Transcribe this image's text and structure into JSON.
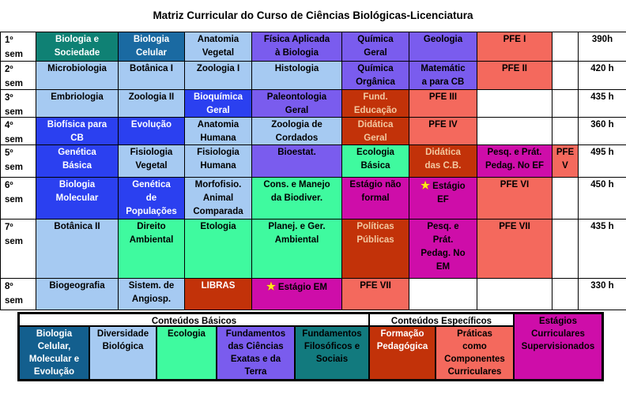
{
  "title": "Matriz Curricular do Curso de Ciências Biológicas-Licenciatura",
  "colors": {
    "teal": {
      "bg": "#0F8174",
      "fg": "#FFFFFF"
    },
    "teal2": {
      "bg": "#127A7E",
      "fg": "#000000"
    },
    "steelblue": {
      "bg": "#1A6AA2",
      "fg": "#FFFFFF"
    },
    "legendblue": {
      "bg": "#135F8E",
      "fg": "#FFFFFF"
    },
    "lightblue": {
      "bg": "#A6CAF2",
      "fg": "#000000"
    },
    "royalblue": {
      "bg": "#2B40F0",
      "fg": "#FFFFFF"
    },
    "purple": {
      "bg": "#7A5CEE",
      "fg": "#000000"
    },
    "green": {
      "bg": "#3FFA9F",
      "fg": "#000000"
    },
    "darkred": {
      "bg": "#C23209",
      "fg": "#F3C9A1"
    },
    "salmon": {
      "bg": "#F4695D",
      "fg": "#000000"
    },
    "magenta": {
      "bg": "#CE0DA9",
      "fg": "#000000"
    },
    "white": {
      "bg": "#FFFFFF",
      "fg": "#000000"
    },
    "star": "#FFE81A"
  },
  "matrix": {
    "rows": [
      {
        "semester": "1º\nsem",
        "hours": "390h",
        "cells": [
          {
            "text": "Biologia e\nSociedade",
            "c": "teal"
          },
          {
            "text": "Biologia\nCelular",
            "c": "steelblue"
          },
          {
            "text": "Anatomia\nVegetal",
            "c": "lightblue"
          },
          {
            "text": "Física Aplicada\nà Biologia",
            "c": "purple"
          },
          {
            "text": "Química\nGeral",
            "c": "purple"
          },
          {
            "text": "Geologia",
            "c": "purple"
          },
          {
            "text": "PFE I",
            "c": "salmon"
          },
          {
            "text": "",
            "c": "white"
          }
        ]
      },
      {
        "semester": "2º\nsem",
        "hours": "420 h",
        "cells": [
          {
            "text": "Microbiologia",
            "c": "lightblue"
          },
          {
            "text": "Botânica I",
            "c": "lightblue"
          },
          {
            "text": "Zoologia I",
            "c": "lightblue"
          },
          {
            "text": "Histologia",
            "c": "lightblue"
          },
          {
            "text": "Química\nOrgânica",
            "c": "purple"
          },
          {
            "text": "Matemátic\na para CB",
            "c": "purple"
          },
          {
            "text": "PFE II",
            "c": "salmon"
          },
          {
            "text": "",
            "c": "white"
          }
        ]
      },
      {
        "semester": "3º\nsem",
        "hours": "435 h",
        "cells": [
          {
            "text": "Embriologia",
            "c": "lightblue"
          },
          {
            "text": "Zoologia II",
            "c": "lightblue"
          },
          {
            "text": "Bioquímica\nGeral",
            "c": "royalblue"
          },
          {
            "text": "Paleontologia\nGeral",
            "c": "purple"
          },
          {
            "text": "Fund.\nEducação",
            "c": "darkred"
          },
          {
            "text": "PFE III",
            "c": "salmon"
          },
          {
            "text": "",
            "c": "white"
          },
          {
            "text": "",
            "c": "white"
          }
        ]
      },
      {
        "semester": "4º\nsem",
        "hours": "360 h",
        "cells": [
          {
            "text": "Biofísica para\nCB",
            "c": "royalblue"
          },
          {
            "text": "Evolução",
            "c": "royalblue"
          },
          {
            "text": "Anatomia\nHumana",
            "c": "lightblue"
          },
          {
            "text": "Zoologia de\nCordados",
            "c": "lightblue"
          },
          {
            "text": "Didática\nGeral",
            "c": "darkred"
          },
          {
            "text": "PFE IV",
            "c": "salmon"
          },
          {
            "text": "",
            "c": "white"
          },
          {
            "text": "",
            "c": "white"
          }
        ]
      },
      {
        "semester": "5º\nsem",
        "hours": "495 h",
        "cells": [
          {
            "text": "Genética\nBásica",
            "c": "royalblue"
          },
          {
            "text": "Fisiologia\nVegetal",
            "c": "lightblue"
          },
          {
            "text": "Fisiologia\nHumana",
            "c": "lightblue"
          },
          {
            "text": "Bioestat.",
            "c": "purple"
          },
          {
            "text": "Ecologia\nBásica",
            "c": "green"
          },
          {
            "text": "Didática\ndas C.B.",
            "c": "darkred"
          },
          {
            "text": "Pesq. e Prát.\nPedag. No EF",
            "c": "magenta"
          },
          {
            "text": "PFE\nV",
            "c": "salmon"
          }
        ]
      },
      {
        "semester": "6º\nsem",
        "hours": "450 h",
        "cells": [
          {
            "text": "Biologia\nMolecular",
            "c": "royalblue"
          },
          {
            "text": "Genética\nde\nPopulações",
            "c": "royalblue"
          },
          {
            "text": "Morfofisio.\nAnimal\nComparada",
            "c": "lightblue"
          },
          {
            "text": "Cons. e Manejo\nda Biodiver.",
            "c": "green"
          },
          {
            "text": "Estágio não\nformal",
            "c": "magenta"
          },
          {
            "text": "Estágio\nEF",
            "c": "magenta",
            "star": true
          },
          {
            "text": "PFE VI",
            "c": "salmon"
          },
          {
            "text": "",
            "c": "white"
          }
        ]
      },
      {
        "semester": "7º\nsem",
        "hours": "435 h",
        "cells": [
          {
            "text": "Botânica II",
            "c": "lightblue"
          },
          {
            "text": "Direito\nAmbiental",
            "c": "green"
          },
          {
            "text": "Etologia",
            "c": "green"
          },
          {
            "text": "Planej. e Ger.\nAmbiental",
            "c": "green"
          },
          {
            "text": "Políticas\nPúblicas",
            "c": "darkred"
          },
          {
            "text": "Pesq. e\nPrát.\nPedag. No\nEM",
            "c": "magenta"
          },
          {
            "text": "PFE VII",
            "c": "salmon"
          },
          {
            "text": "",
            "c": "white"
          }
        ]
      },
      {
        "semester": "8º\nsem",
        "hours": "330 h",
        "cells": [
          {
            "text": "Biogeografia",
            "c": "lightblue"
          },
          {
            "text": "Sistem. de\nAngiosp.",
            "c": "lightblue"
          },
          {
            "text": "LIBRAS",
            "c": "darkred",
            "fg": "#FFFFFF"
          },
          {
            "text": "Estágio EM",
            "c": "magenta",
            "star": true
          },
          {
            "text": "PFE VII",
            "c": "salmon"
          },
          {
            "text": "",
            "c": "white"
          },
          {
            "text": "",
            "c": "white"
          },
          {
            "text": "",
            "c": "white"
          }
        ]
      }
    ]
  },
  "legend": {
    "basicos_title": "Conteúdos Básicos",
    "especificos_title": "Conteúdos Específicos",
    "items": [
      {
        "text": "Biologia\nCelular,\nMolecular e\nEvolução",
        "c": "legendblue"
      },
      {
        "text": "Diversidade\nBiológica",
        "c": "lightblue"
      },
      {
        "text": "Ecologia",
        "c": "green"
      },
      {
        "text": "Fundamentos\ndas Ciências\nExatas e da\nTerra",
        "c": "purple"
      },
      {
        "text": "Fundamentos\nFilosóficos e\nSociais",
        "c": "teal2"
      },
      {
        "text": "Formação\nPedagógica",
        "c": "darkred",
        "fg": "#FFFFFF"
      },
      {
        "text": "Práticas\ncomo\nComponentes\nCurriculares",
        "c": "salmon"
      }
    ],
    "estagios": {
      "text": "Estágios\nCurriculares\nSupervisionados",
      "c": "magenta"
    }
  }
}
